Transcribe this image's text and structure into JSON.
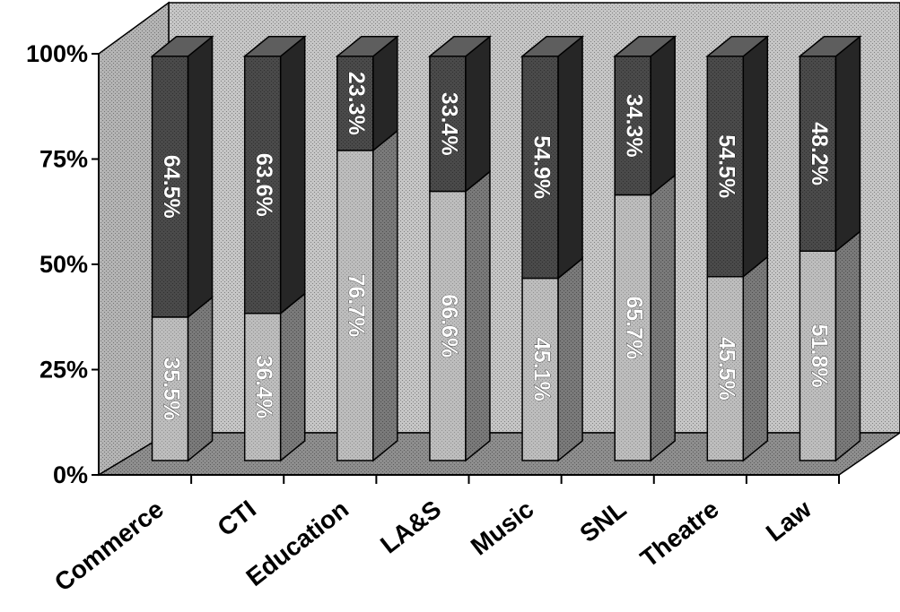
{
  "chart_data": {
    "type": "bar",
    "stacked": true,
    "three_d": true,
    "percent_stacked": true,
    "categories": [
      "Commerce",
      "CTI",
      "Education",
      "LA&S",
      "Music",
      "SNL",
      "Theatre",
      "Law"
    ],
    "series": [
      {
        "values": [
          35.5,
          36.4,
          76.7,
          66.6,
          45.1,
          65.7,
          45.5,
          51.8
        ],
        "labels": [
          "35.5%",
          "36.4%",
          "76.7%",
          "66.6%",
          "45.1%",
          "65.7%",
          "45.5%",
          "51.8%"
        ]
      },
      {
        "values": [
          64.5,
          63.6,
          23.3,
          33.4,
          54.9,
          34.3,
          54.5,
          48.2
        ],
        "labels": [
          "64.5%",
          "63.6%",
          "23.3%",
          "33.4%",
          "54.9%",
          "34.3%",
          "54.5%",
          "48.2%"
        ]
      }
    ],
    "yticks": [
      "0%",
      "25%",
      "50%",
      "75%",
      "100%"
    ],
    "ylim": [
      0,
      100
    ],
    "legend": "none",
    "grid": false,
    "colors": {
      "wall": "#c6c6c6",
      "floor": "#8e8e8e",
      "lower_front": "#bdbdbd",
      "lower_side": "#7a7a7a",
      "upper_front": "#4a4a4a",
      "upper_side": "#262626",
      "upper_top": "#5e5e5e"
    }
  }
}
